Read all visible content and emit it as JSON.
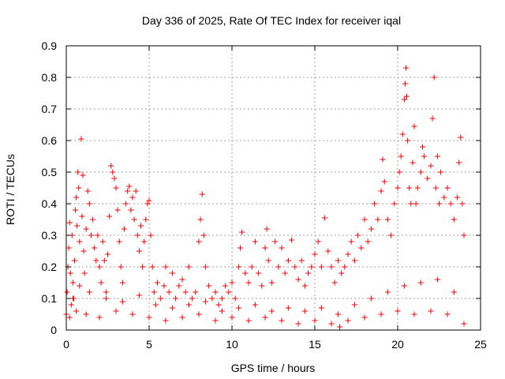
{
  "chart_data": {
    "type": "scatter",
    "title": "Day 336 of 2025, Rate Of TEC Index for receiver iqal",
    "xlabel": "GPS time / hours",
    "ylabel": "ROTI / TECUs",
    "xlim": [
      0,
      25
    ],
    "ylim": [
      0,
      0.9
    ],
    "xticks": [
      0,
      5,
      10,
      15,
      20,
      25
    ],
    "yticks": [
      0,
      0.1,
      0.2,
      0.3,
      0.4,
      0.5,
      0.6,
      0.7,
      0.8,
      0.9
    ],
    "xtick_labels": [
      "0",
      "5",
      "10",
      "15",
      "20",
      "25"
    ],
    "ytick_labels": [
      "0",
      "0.1",
      "0.2",
      "0.3",
      "0.4",
      "0.5",
      "0.6",
      "0.7",
      "0.8",
      "0.9"
    ],
    "grid": true,
    "marker": "plus",
    "color": "#ff0000",
    "series": [
      {
        "points": [
          [
            0.0,
            0.05
          ],
          [
            0.05,
            0.12
          ],
          [
            0.1,
            0.2
          ],
          [
            0.15,
            0.26
          ],
          [
            0.2,
            0.34
          ],
          [
            0.25,
            0.18
          ],
          [
            0.3,
            0.08
          ],
          [
            0.35,
            0.3
          ],
          [
            0.4,
            0.15
          ],
          [
            0.45,
            0.1
          ],
          [
            0.5,
            0.22
          ],
          [
            0.55,
            0.38
          ],
          [
            0.6,
            0.42
          ],
          [
            0.65,
            0.33
          ],
          [
            0.7,
            0.5
          ],
          [
            0.75,
            0.45
          ],
          [
            0.8,
            0.28
          ],
          [
            0.9,
            0.605
          ],
          [
            0.95,
            0.36
          ],
          [
            1.0,
            0.49
          ],
          [
            1.05,
            0.25
          ],
          [
            1.1,
            0.18
          ],
          [
            1.2,
            0.32
          ],
          [
            1.3,
            0.44
          ],
          [
            1.4,
            0.4
          ],
          [
            1.5,
            0.3
          ],
          [
            1.6,
            0.35
          ],
          [
            1.7,
            0.26
          ],
          [
            1.8,
            0.22
          ],
          [
            1.9,
            0.3
          ],
          [
            2.0,
            0.2
          ],
          [
            2.1,
            0.15
          ],
          [
            2.2,
            0.28
          ],
          [
            2.3,
            0.22
          ],
          [
            2.4,
            0.12
          ],
          [
            2.5,
            0.24
          ],
          [
            2.6,
            0.36
          ],
          [
            2.7,
            0.52
          ],
          [
            2.8,
            0.5
          ],
          [
            2.9,
            0.48
          ],
          [
            3.0,
            0.45
          ],
          [
            3.1,
            0.38
          ],
          [
            3.2,
            0.28
          ],
          [
            3.3,
            0.2
          ],
          [
            3.4,
            0.15
          ],
          [
            3.5,
            0.32
          ],
          [
            3.6,
            0.4
          ],
          [
            3.7,
            0.44
          ],
          [
            3.8,
            0.455
          ],
          [
            3.9,
            0.38
          ],
          [
            4.0,
            0.42
          ],
          [
            4.1,
            0.35
          ],
          [
            4.2,
            0.44
          ],
          [
            4.3,
            0.3
          ],
          [
            4.4,
            0.25
          ],
          [
            4.5,
            0.33
          ],
          [
            4.6,
            0.2
          ],
          [
            4.7,
            0.28
          ],
          [
            4.8,
            0.35
          ],
          [
            4.9,
            0.4
          ],
          [
            5.0,
            0.41
          ],
          [
            5.1,
            0.3
          ],
          [
            5.2,
            0.2
          ],
          [
            5.3,
            0.12
          ],
          [
            5.5,
            0.15
          ],
          [
            5.7,
            0.1
          ],
          [
            5.9,
            0.14
          ],
          [
            6.0,
            0.2
          ],
          [
            6.2,
            0.12
          ],
          [
            6.4,
            0.18
          ],
          [
            6.6,
            0.1
          ],
          [
            6.8,
            0.14
          ],
          [
            7.0,
            0.16
          ],
          [
            7.2,
            0.12
          ],
          [
            7.4,
            0.2
          ],
          [
            7.6,
            0.1
          ],
          [
            7.8,
            0.12
          ],
          [
            8.0,
            0.28
          ],
          [
            8.1,
            0.35
          ],
          [
            8.2,
            0.43
          ],
          [
            8.3,
            0.3
          ],
          [
            8.4,
            0.2
          ],
          [
            8.6,
            0.14
          ],
          [
            8.8,
            0.1
          ],
          [
            9.0,
            0.12
          ],
          [
            9.2,
            0.08
          ],
          [
            9.4,
            0.1
          ],
          [
            9.6,
            0.14
          ],
          [
            9.8,
            0.12
          ],
          [
            10.0,
            0.15
          ],
          [
            10.2,
            0.1
          ],
          [
            10.4,
            0.2
          ],
          [
            10.5,
            0.26
          ],
          [
            10.6,
            0.31
          ],
          [
            10.8,
            0.18
          ],
          [
            11.0,
            0.15
          ],
          [
            11.2,
            0.2
          ],
          [
            11.4,
            0.28
          ],
          [
            11.6,
            0.18
          ],
          [
            11.8,
            0.14
          ],
          [
            12.0,
            0.26
          ],
          [
            12.1,
            0.32
          ],
          [
            12.2,
            0.22
          ],
          [
            12.4,
            0.15
          ],
          [
            12.6,
            0.28
          ],
          [
            12.8,
            0.2
          ],
          [
            13.0,
            0.26
          ],
          [
            13.2,
            0.18
          ],
          [
            13.4,
            0.22
          ],
          [
            13.6,
            0.285
          ],
          [
            13.8,
            0.2
          ],
          [
            14.0,
            0.16
          ],
          [
            14.2,
            0.22
          ],
          [
            14.4,
            0.14
          ],
          [
            14.6,
            0.18
          ],
          [
            14.8,
            0.2
          ],
          [
            15.0,
            0.24
          ],
          [
            15.2,
            0.28
          ],
          [
            15.4,
            0.2
          ],
          [
            15.6,
            0.355
          ],
          [
            15.8,
            0.25
          ],
          [
            16.0,
            0.2
          ],
          [
            16.2,
            0.15
          ],
          [
            16.4,
            0.22
          ],
          [
            16.6,
            0.18
          ],
          [
            16.8,
            0.2
          ],
          [
            17.0,
            0.24
          ],
          [
            17.2,
            0.28
          ],
          [
            17.4,
            0.22
          ],
          [
            17.6,
            0.3
          ],
          [
            17.8,
            0.26
          ],
          [
            18.0,
            0.35
          ],
          [
            18.2,
            0.28
          ],
          [
            18.4,
            0.32
          ],
          [
            18.6,
            0.4
          ],
          [
            18.8,
            0.35
          ],
          [
            19.0,
            0.44
          ],
          [
            19.1,
            0.54
          ],
          [
            19.2,
            0.47
          ],
          [
            19.4,
            0.35
          ],
          [
            19.6,
            0.3
          ],
          [
            19.8,
            0.4
          ],
          [
            20.0,
            0.45
          ],
          [
            20.1,
            0.5
          ],
          [
            20.2,
            0.55
          ],
          [
            20.3,
            0.62
          ],
          [
            20.4,
            0.73
          ],
          [
            20.45,
            0.78
          ],
          [
            20.5,
            0.83
          ],
          [
            20.55,
            0.74
          ],
          [
            20.6,
            0.6
          ],
          [
            20.7,
            0.45
          ],
          [
            20.8,
            0.4
          ],
          [
            20.9,
            0.53
          ],
          [
            21.0,
            0.645
          ],
          [
            21.1,
            0.4
          ],
          [
            21.2,
            0.45
          ],
          [
            21.4,
            0.5
          ],
          [
            21.5,
            0.58
          ],
          [
            21.6,
            0.55
          ],
          [
            21.8,
            0.48
          ],
          [
            22.0,
            0.52
          ],
          [
            22.1,
            0.67
          ],
          [
            22.2,
            0.8
          ],
          [
            22.3,
            0.45
          ],
          [
            22.4,
            0.55
          ],
          [
            22.5,
            0.4
          ],
          [
            22.6,
            0.5
          ],
          [
            22.8,
            0.42
          ],
          [
            23.0,
            0.45
          ],
          [
            23.2,
            0.4
          ],
          [
            23.4,
            0.35
          ],
          [
            23.6,
            0.42
          ],
          [
            23.7,
            0.53
          ],
          [
            23.8,
            0.61
          ],
          [
            23.9,
            0.4
          ],
          [
            24.0,
            0.3
          ],
          [
            0.2,
            0.04
          ],
          [
            0.6,
            0.06
          ],
          [
            1.2,
            0.05
          ],
          [
            2.0,
            0.04
          ],
          [
            3.0,
            0.06
          ],
          [
            4.0,
            0.05
          ],
          [
            5.0,
            0.04
          ],
          [
            6.0,
            0.03
          ],
          [
            7.0,
            0.04
          ],
          [
            8.0,
            0.05
          ],
          [
            9.0,
            0.03
          ],
          [
            10.0,
            0.04
          ],
          [
            11.0,
            0.03
          ],
          [
            12.0,
            0.04
          ],
          [
            13.0,
            0.03
          ],
          [
            14.0,
            0.02
          ],
          [
            15.0,
            0.03
          ],
          [
            16.0,
            0.02
          ],
          [
            16.5,
            0.01
          ],
          [
            17.0,
            0.03
          ],
          [
            18.0,
            0.04
          ],
          [
            19.0,
            0.05
          ],
          [
            20.0,
            0.06
          ],
          [
            21.0,
            0.05
          ],
          [
            22.0,
            0.06
          ],
          [
            23.0,
            0.05
          ],
          [
            24.0,
            0.02
          ],
          [
            0.4,
            0.1
          ],
          [
            0.8,
            0.14
          ],
          [
            1.4,
            0.12
          ],
          [
            2.4,
            0.1
          ],
          [
            3.4,
            0.09
          ],
          [
            4.4,
            0.11
          ],
          [
            5.4,
            0.08
          ],
          [
            6.4,
            0.07
          ],
          [
            7.4,
            0.08
          ],
          [
            8.4,
            0.09
          ],
          [
            9.4,
            0.06
          ],
          [
            10.4,
            0.07
          ],
          [
            11.4,
            0.08
          ],
          [
            12.4,
            0.06
          ],
          [
            13.4,
            0.07
          ],
          [
            14.4,
            0.06
          ],
          [
            15.4,
            0.07
          ],
          [
            16.4,
            0.05
          ],
          [
            17.4,
            0.08
          ],
          [
            18.4,
            0.1
          ],
          [
            19.4,
            0.12
          ],
          [
            20.4,
            0.14
          ],
          [
            21.4,
            0.15
          ],
          [
            22.4,
            0.16
          ],
          [
            23.4,
            0.12
          ]
        ]
      }
    ]
  }
}
